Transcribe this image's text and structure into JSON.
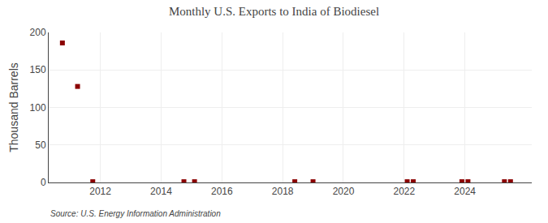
{
  "chart_data": {
    "type": "scatter",
    "title": "Monthly U.S. Exports to India of Biodiesel",
    "ylabel": "Thousand Barrels",
    "annotations": [
      "Source: U.S. Energy Information Administration"
    ],
    "x": [
      2010.75,
      2011.25,
      2011.75,
      2014.75,
      2015.1,
      2018.4,
      2019.0,
      2022.1,
      2022.3,
      2023.9,
      2024.1,
      2025.3,
      2025.5
    ],
    "values": [
      186,
      128,
      1,
      1,
      1,
      1,
      1,
      1,
      1,
      1,
      1,
      1,
      1
    ],
    "color": "#8b0000",
    "marker": "square",
    "xlim": [
      2010.3,
      2026.2
    ],
    "xticks": [
      2012,
      2014,
      2016,
      2018,
      2020,
      2022,
      2024
    ],
    "ylim": [
      0,
      200
    ],
    "yticks": [
      0,
      50,
      100,
      150,
      200
    ],
    "grid": true
  }
}
